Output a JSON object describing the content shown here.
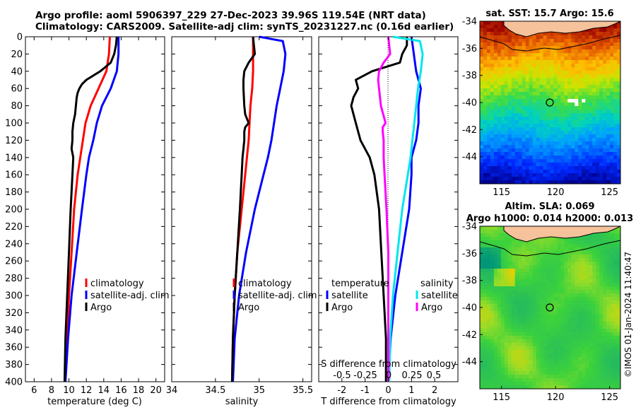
{
  "header": {
    "line1": "Argo profile: aoml 5906397_229 27-Dec-2023 39.96S 119.54E (NRT data)",
    "line2": "Climatology: CARS2009. Satellite-adj clim: synTS_20231227.nc (0.16d earlier)"
  },
  "colors": {
    "climatology": "#ff0000",
    "satellite": "#0000ff",
    "argo": "#000000",
    "satellite_salinity": "#00e5ee",
    "argo_salinity": "#ff00ff",
    "land": "#f5c29b"
  },
  "watermark": "©IMOS 01-Jan-2024 11:40:47",
  "chart_data": [
    {
      "id": "temperature",
      "type": "line",
      "xlabel": "temperature (deg C)",
      "xlim": [
        5,
        21
      ],
      "xticks": [
        6,
        8,
        10,
        12,
        14,
        16,
        18,
        20
      ],
      "xtick_labels": [
        "6",
        "8",
        "10",
        "12",
        "14",
        "16",
        "18",
        "20"
      ],
      "ylim": [
        0,
        400
      ],
      "yticks": [
        0,
        20,
        40,
        60,
        80,
        100,
        120,
        140,
        160,
        180,
        200,
        220,
        240,
        260,
        280,
        300,
        320,
        340,
        360,
        380,
        400
      ],
      "ytick_labels": [
        "0",
        "20",
        "40",
        "60",
        "80",
        "100",
        "120",
        "140",
        "160",
        "180",
        "200",
        "220",
        "240",
        "260",
        "280",
        "300",
        "320",
        "340",
        "360",
        "380",
        "400"
      ],
      "legend": [
        "climatology",
        "satellite-adj. clim",
        "Argo"
      ],
      "series": [
        {
          "name": "climatology",
          "color": "#ff0000",
          "depth": [
            0,
            20,
            40,
            60,
            80,
            100,
            120,
            140,
            160,
            200,
            250,
            300,
            350,
            400
          ],
          "values": [
            14.7,
            14.6,
            14.3,
            13.4,
            12.5,
            11.9,
            11.6,
            11.3,
            11.0,
            10.6,
            10.3,
            10.0,
            9.8,
            9.6
          ]
        },
        {
          "name": "satellite-adj. clim",
          "color": "#0000ff",
          "depth": [
            0,
            20,
            40,
            60,
            80,
            100,
            120,
            140,
            160,
            200,
            250,
            300,
            350,
            400
          ],
          "values": [
            15.7,
            15.7,
            15.5,
            14.8,
            13.8,
            13.2,
            12.8,
            12.3,
            12.0,
            11.5,
            10.9,
            10.3,
            9.9,
            9.6
          ]
        },
        {
          "name": "Argo",
          "color": "#000000",
          "depth": [
            0,
            10,
            20,
            30,
            40,
            50,
            55,
            60,
            65,
            70,
            80,
            90,
            100,
            110,
            120,
            130,
            140,
            160,
            200,
            250,
            300,
            350,
            400
          ],
          "values": [
            15.5,
            15.4,
            15.2,
            14.8,
            13.6,
            12.0,
            11.5,
            11.2,
            11.0,
            10.9,
            10.8,
            10.7,
            10.5,
            10.4,
            10.4,
            10.3,
            10.5,
            10.4,
            10.2,
            10.0,
            9.8,
            9.6,
            9.5
          ]
        }
      ]
    },
    {
      "id": "salinity",
      "type": "line",
      "xlabel": "salinity",
      "xlim": [
        34,
        35.6
      ],
      "xticks": [
        34,
        34.5,
        35,
        35.5
      ],
      "xtick_labels": [
        "34",
        "34.5",
        "35",
        "35.5"
      ],
      "ylim": [
        0,
        400
      ],
      "legend": [
        "climatology",
        "satellite-adj. clim",
        "Argo"
      ],
      "series": [
        {
          "name": "climatology",
          "color": "#ff0000",
          "depth": [
            0,
            20,
            40,
            60,
            80,
            100,
            120,
            140,
            160,
            200,
            250,
            300,
            350,
            400
          ],
          "values": [
            34.93,
            34.93,
            34.93,
            34.92,
            34.9,
            34.89,
            34.88,
            34.86,
            34.84,
            34.8,
            34.75,
            34.72,
            34.7,
            34.69
          ]
        },
        {
          "name": "satellite-adj. clim",
          "color": "#0000ff",
          "depth": [
            0,
            5,
            20,
            40,
            60,
            80,
            100,
            120,
            140,
            160,
            200,
            250,
            300,
            350,
            400
          ],
          "values": [
            35.0,
            35.27,
            35.3,
            35.28,
            35.24,
            35.2,
            35.17,
            35.14,
            35.1,
            35.05,
            34.95,
            34.85,
            34.77,
            34.72,
            34.7
          ]
        },
        {
          "name": "Argo",
          "color": "#000000",
          "depth": [
            0,
            10,
            20,
            30,
            40,
            50,
            60,
            80,
            90,
            100,
            105,
            110,
            120,
            130,
            140,
            160,
            200,
            250,
            300,
            350,
            400
          ],
          "values": [
            34.93,
            34.94,
            34.95,
            34.88,
            34.83,
            34.82,
            34.82,
            34.83,
            34.84,
            34.88,
            34.84,
            34.83,
            34.83,
            34.82,
            34.81,
            34.8,
            34.78,
            34.75,
            34.72,
            34.7,
            34.69
          ]
        }
      ]
    },
    {
      "id": "differences",
      "type": "line",
      "xlabel": "T difference from climatology",
      "xlim": [
        -3,
        3
      ],
      "xticks": [
        -2,
        -1,
        0,
        1,
        2
      ],
      "xtick_labels": [
        "-2",
        "-1",
        "0",
        "1",
        "2"
      ],
      "top_axis_label": "S difference from climatology",
      "top_xtick_labels": [
        "-0.5",
        "-0.25",
        "0",
        "0.25",
        "0.5"
      ],
      "ylim": [
        0,
        400
      ],
      "legend_temperature_title": "temperature",
      "legend_salinity_title": "salinity",
      "legend_temperature": [
        "satellite",
        "Argo"
      ],
      "legend_salinity": [
        "satellite",
        "Argo"
      ],
      "series": [
        {
          "name": "temperature satellite",
          "color": "#0000ff",
          "depth": [
            0,
            20,
            40,
            60,
            80,
            100,
            120,
            140,
            160,
            200,
            250,
            300,
            350,
            400
          ],
          "values": [
            1.0,
            1.1,
            1.2,
            1.4,
            1.3,
            1.3,
            1.2,
            1.0,
            1.0,
            0.9,
            0.6,
            0.3,
            0.1,
            0.0
          ]
        },
        {
          "name": "temperature Argo",
          "color": "#000000",
          "depth": [
            0,
            10,
            20,
            30,
            40,
            50,
            60,
            70,
            80,
            100,
            120,
            140,
            160,
            200,
            250,
            300,
            350,
            400
          ],
          "values": [
            0.8,
            0.8,
            0.6,
            0.5,
            -0.7,
            -1.4,
            -1.3,
            -1.5,
            -1.6,
            -1.4,
            -1.2,
            -0.8,
            -0.6,
            -0.4,
            -0.3,
            -0.2,
            -0.1,
            -0.1
          ]
        },
        {
          "name": "salinity satellite",
          "color": "#00e5ee",
          "depth": [
            0,
            5,
            20,
            40,
            60,
            80,
            100,
            120,
            140,
            160,
            200,
            250,
            300,
            350,
            400
          ],
          "values": [
            0.05,
            0.34,
            0.37,
            0.35,
            0.32,
            0.3,
            0.28,
            0.26,
            0.24,
            0.21,
            0.15,
            0.1,
            0.05,
            0.02,
            0.01
          ]
        },
        {
          "name": "salinity Argo",
          "color": "#ff00ff",
          "depth": [
            0,
            10,
            20,
            30,
            40,
            50,
            60,
            80,
            100,
            105,
            110,
            120,
            140,
            160,
            200,
            250,
            300,
            350,
            400
          ],
          "values": [
            0.0,
            0.01,
            0.02,
            -0.05,
            -0.1,
            -0.11,
            -0.1,
            -0.08,
            -0.03,
            -0.06,
            -0.06,
            -0.05,
            -0.05,
            -0.04,
            -0.02,
            0.0,
            0.0,
            0.0,
            0.0
          ]
        }
      ]
    },
    {
      "id": "sst_map",
      "type": "heatmap",
      "title": "sat. SST: 15.7 Argo: 15.6",
      "xlim": [
        113,
        126
      ],
      "ylim": [
        -46,
        -34
      ],
      "xticks": [
        115,
        120,
        125
      ],
      "xtick_labels": [
        "115",
        "120",
        "125"
      ],
      "yticks": [
        -34,
        -36,
        -38,
        -40,
        -42,
        -44
      ],
      "ytick_labels": [
        "-34",
        "-36",
        "-38",
        "-40",
        "-42",
        "-44"
      ],
      "float_position": [
        119.54,
        -39.96
      ]
    },
    {
      "id": "sla_map",
      "type": "heatmap",
      "title_line1": "Altim. SLA: 0.069",
      "title_line2": "Argo h1000: 0.014 h2000: 0.013",
      "xlim": [
        113,
        126
      ],
      "ylim": [
        -46,
        -34
      ],
      "xticks": [
        115,
        120,
        125
      ],
      "xtick_labels": [
        "115",
        "120",
        "125"
      ],
      "yticks": [
        -34,
        -36,
        -38,
        -40,
        -42,
        -44
      ],
      "ytick_labels": [
        "-34",
        "-36",
        "-38",
        "-40",
        "-42",
        "-44"
      ],
      "float_position": [
        119.54,
        -39.96
      ]
    }
  ]
}
